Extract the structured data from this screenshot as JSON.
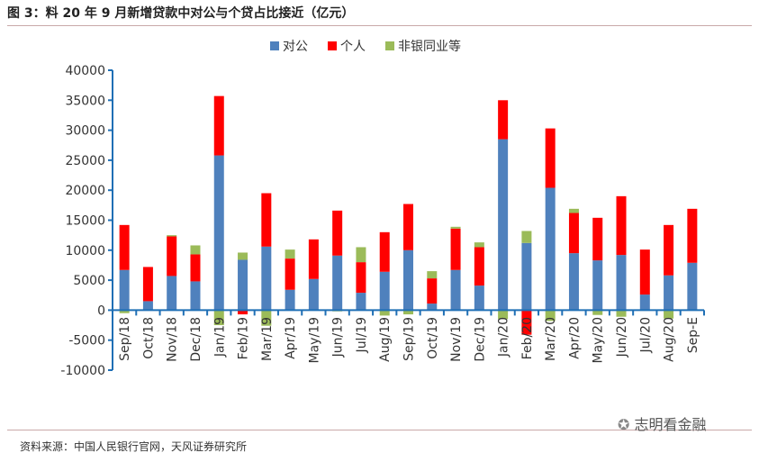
{
  "title": "图 3：料 20 年 9 月新增贷款中对公与个贷占比接近（亿元）",
  "source": "资料来源：中国人民银行官网，天风证券研究所",
  "watermark": "志明看金融",
  "chart_data": {
    "type": "bar",
    "stacked": true,
    "title": "图 3：料 20 年 9 月新增贷款中对公与个贷占比接近（亿元）",
    "xlabel": "",
    "ylabel": "亿元",
    "ylim": [
      -10000,
      40000
    ],
    "yticks": [
      -10000,
      -5000,
      0,
      5000,
      10000,
      15000,
      20000,
      25000,
      30000,
      35000,
      40000
    ],
    "grid": false,
    "legend_position": "top-center",
    "categories": [
      "Sep/18",
      "Oct/18",
      "Nov/18",
      "Dec/18",
      "Jan/19",
      "Feb/19",
      "Mar/19",
      "Apr/19",
      "May/19",
      "Jun/19",
      "Jul/19",
      "Aug/19",
      "Sep/19",
      "Oct/19",
      "Nov/19",
      "Dec/19",
      "Jan/20",
      "Feb/20",
      "Mar/20",
      "Apr/20",
      "May/20",
      "Jun/20",
      "Jul/20",
      "Aug/20",
      "Sep-E"
    ],
    "series": [
      {
        "name": "对公",
        "color": "#4f81bd",
        "values": [
          6700,
          1500,
          5700,
          4800,
          25800,
          8400,
          10600,
          3400,
          5200,
          9100,
          2900,
          6400,
          10000,
          1100,
          6700,
          4100,
          28500,
          11200,
          20400,
          9500,
          8300,
          9200,
          2600,
          5800,
          7900
        ]
      },
      {
        "name": "个人",
        "color": "#ff0000",
        "values": [
          7500,
          5700,
          6600,
          4500,
          9900,
          -700,
          8900,
          5200,
          6600,
          7500,
          5100,
          6600,
          7700,
          4200,
          6900,
          6400,
          6500,
          -4100,
          9900,
          6700,
          7100,
          9800,
          7500,
          8400,
          9000
        ]
      },
      {
        "name": "非银同业等",
        "color": "#9bbb59",
        "values": [
          -500,
          0,
          200,
          1500,
          -2500,
          1200,
          -2600,
          1500,
          0,
          -200,
          2500,
          -900,
          -700,
          1200,
          300,
          800,
          -1500,
          2000,
          -1800,
          700,
          -800,
          -1100,
          -100,
          -1400,
          0
        ]
      }
    ]
  }
}
